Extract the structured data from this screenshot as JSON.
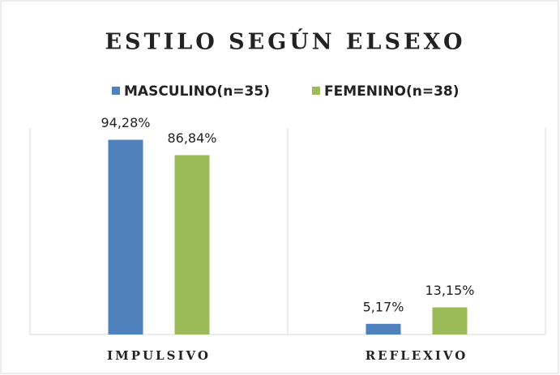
{
  "chart_data": {
    "type": "bar",
    "title": "ESTILO SEGÚN ELSEXO",
    "categories": [
      "IMPULSIVO",
      "REFLEXIVO"
    ],
    "series": [
      {
        "name": "MASCULINO(n=35)",
        "color": "#4f81bd",
        "values": [
          94.28,
          5.17
        ],
        "value_labels": [
          "94,28%",
          "5,17%"
        ]
      },
      {
        "name": "FEMENINO(n=38)",
        "color": "#9bbb59",
        "values": [
          86.84,
          13.15
        ],
        "value_labels": [
          "86,84%",
          "13,15%"
        ]
      }
    ],
    "ylim": [
      0,
      100
    ],
    "legend": "top"
  }
}
